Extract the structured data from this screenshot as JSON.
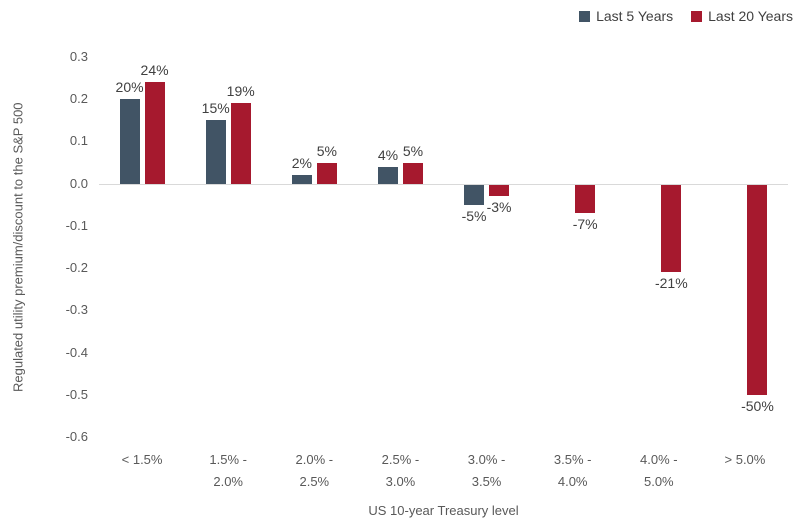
{
  "chart_data": {
    "type": "bar",
    "title": "",
    "xlabel": "US 10-year Treasury level",
    "ylabel": "Regulated utility premium/discount to the S&P 500",
    "categories": [
      "< 1.5%",
      "1.5% - 2.0%",
      "2.0% - 2.5%",
      "2.5% - 3.0%",
      "3.0% - 3.5%",
      "3.5% - 4.0%",
      "4.0% - 5.0%",
      "> 5.0%"
    ],
    "category_lines": [
      [
        "< 1.5%"
      ],
      [
        "1.5% -",
        "2.0%"
      ],
      [
        "2.0% -",
        "2.5%"
      ],
      [
        "2.5% -",
        "3.0%"
      ],
      [
        "3.0% -",
        "3.5%"
      ],
      [
        "3.5% -",
        "4.0%"
      ],
      [
        "4.0% -",
        "5.0%"
      ],
      [
        "> 5.0%"
      ]
    ],
    "series": [
      {
        "name": "Last 5 Years",
        "color": "#415465",
        "values": [
          0.2,
          0.15,
          0.02,
          0.04,
          -0.05,
          null,
          null,
          null
        ],
        "labels": [
          "20%",
          "15%",
          "2%",
          "4%",
          "-5%",
          "",
          "",
          ""
        ]
      },
      {
        "name": "Last 20 Years",
        "color": "#A6192E",
        "values": [
          0.24,
          0.19,
          0.05,
          0.05,
          -0.03,
          -0.07,
          -0.21,
          -0.5
        ],
        "labels": [
          "24%",
          "19%",
          "5%",
          "5%",
          "-3%",
          "-7%",
          "-21%",
          "-50%"
        ]
      }
    ],
    "ylim": [
      -0.6,
      0.3
    ],
    "ytick_step": 0.1,
    "yticks": [
      "0.3",
      "0.2",
      "0.1",
      "0.0",
      "-0.1",
      "-0.2",
      "-0.3",
      "-0.4",
      "-0.5",
      "-0.6"
    ],
    "grid": false,
    "legend_position": "top-right",
    "axis_colors": {
      "tick_text": "#595959",
      "zero_line": "#d9d9d9",
      "data_label_text": "#404040"
    }
  }
}
